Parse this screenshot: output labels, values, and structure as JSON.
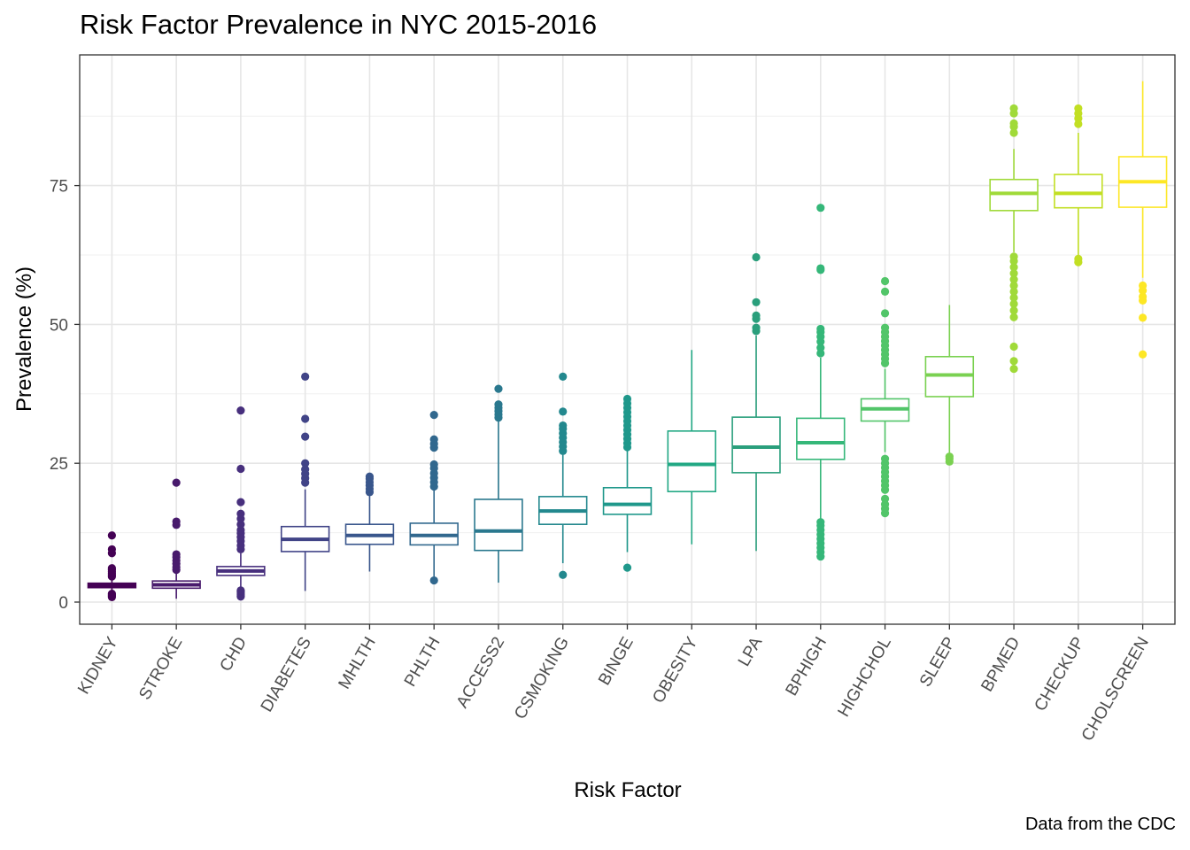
{
  "chart_data": {
    "type": "boxplot",
    "title": "Risk Factor Prevalence in NYC 2015-2016",
    "caption": "Data from the CDC",
    "xlabel": "Risk Factor",
    "ylabel": "Prevalence (%)",
    "ylim": [
      -4,
      98
    ],
    "yticks": [
      0,
      25,
      50,
      75
    ],
    "grid": true,
    "legend": "none",
    "categories": [
      "KIDNEY",
      "STROKE",
      "CHD",
      "DIABETES",
      "MHLTH",
      "PHLTH",
      "ACCESS2",
      "CSMOKING",
      "BINGE",
      "OBESITY",
      "LPA",
      "BPHIGH",
      "HIGHCHOL",
      "SLEEP",
      "BPMED",
      "CHECKUP",
      "CHOLSCREEN"
    ],
    "series": [
      {
        "category": "KIDNEY",
        "color": "#440154",
        "whisker_low": 2.0,
        "q1": 2.6,
        "median": 3.0,
        "q3": 3.4,
        "whisker_high": 4.1,
        "outliers": [
          0.9,
          1.1,
          1.3,
          1.5,
          4.6,
          4.9,
          5.2,
          5.5,
          5.8,
          6.1,
          8.8,
          9.5,
          12.0
        ]
      },
      {
        "category": "STROKE",
        "color": "#481A6C",
        "whisker_low": 0.6,
        "q1": 2.5,
        "median": 3.1,
        "q3": 3.8,
        "whisker_high": 5.4,
        "outliers": [
          5.8,
          6.3,
          6.9,
          7.5,
          8.1,
          8.6,
          13.9,
          14.5,
          21.5
        ]
      },
      {
        "category": "CHD",
        "color": "#472F7D",
        "whisker_low": 2.4,
        "q1": 4.8,
        "median": 5.6,
        "q3": 6.4,
        "whisker_high": 8.8,
        "outliers": [
          1.0,
          1.3,
          1.6,
          1.9,
          2.1,
          9.5,
          10.2,
          11.0,
          11.7,
          12.4,
          13.0,
          14.0,
          15.0,
          15.9,
          18.0,
          24.0,
          34.5
        ]
      },
      {
        "category": "DIABETES",
        "color": "#414487",
        "whisker_low": 2.0,
        "q1": 9.1,
        "median": 11.3,
        "q3": 13.6,
        "whisker_high": 20.3,
        "outliers": [
          21.5,
          22.3,
          23.1,
          23.9,
          25.0,
          29.8,
          33.0,
          40.6
        ]
      },
      {
        "category": "MHLTH",
        "color": "#39568C",
        "whisker_low": 5.5,
        "q1": 10.4,
        "median": 12.0,
        "q3": 14.0,
        "whisker_high": 19.3,
        "outliers": [
          19.8,
          20.4,
          21.0,
          21.6,
          22.2,
          22.6
        ]
      },
      {
        "category": "PHLTH",
        "color": "#31688E",
        "whisker_low": 4.1,
        "q1": 10.3,
        "median": 12.0,
        "q3": 14.2,
        "whisker_high": 20.1,
        "outliers": [
          3.9,
          20.8,
          21.6,
          22.4,
          23.2,
          24.1,
          24.8,
          27.8,
          28.5,
          29.3,
          33.7
        ]
      },
      {
        "category": "ACCESS2",
        "color": "#2A788E",
        "whisker_low": 3.5,
        "q1": 9.3,
        "median": 12.8,
        "q3": 18.5,
        "whisker_high": 32.6,
        "outliers": [
          33.2,
          33.8,
          34.4,
          35.0,
          35.6,
          38.4
        ]
      },
      {
        "category": "CSMOKING",
        "color": "#23888E",
        "whisker_low": 7.0,
        "q1": 14.0,
        "median": 16.4,
        "q3": 19.0,
        "whisker_high": 26.5,
        "outliers": [
          4.9,
          27.2,
          28.0,
          28.8,
          29.6,
          30.4,
          31.2,
          31.8,
          34.3,
          40.6
        ]
      },
      {
        "category": "BINGE",
        "color": "#1F988B",
        "whisker_low": 9.0,
        "q1": 15.8,
        "median": 17.6,
        "q3": 20.6,
        "whisker_high": 27.3,
        "outliers": [
          6.2,
          27.9,
          28.6,
          29.4,
          30.2,
          31.0,
          31.8,
          32.6,
          33.4,
          34.2,
          35.0,
          35.8,
          36.6
        ]
      },
      {
        "category": "OBESITY",
        "color": "#22A884",
        "whisker_low": 10.4,
        "q1": 19.9,
        "median": 24.8,
        "q3": 30.8,
        "whisker_high": 45.4,
        "outliers": []
      },
      {
        "category": "LPA",
        "color": "#2A9F7C",
        "whisker_low": 9.2,
        "q1": 23.3,
        "median": 27.9,
        "q3": 33.3,
        "whisker_high": 48.0,
        "outliers": [
          48.8,
          49.4,
          51.0,
          51.6,
          54.0,
          62.1
        ]
      },
      {
        "category": "BPHIGH",
        "color": "#35B779",
        "whisker_low": 15.0,
        "q1": 25.7,
        "median": 28.7,
        "q3": 33.1,
        "whisker_high": 44.0,
        "outliers": [
          8.2,
          9.0,
          9.8,
          10.6,
          11.4,
          12.2,
          13.0,
          13.8,
          14.4,
          44.8,
          45.8,
          46.9,
          47.8,
          48.6,
          49.2,
          59.8,
          60.1,
          71.0
        ]
      },
      {
        "category": "HIGHCHOL",
        "color": "#52C569",
        "whisker_low": 27.0,
        "q1": 32.6,
        "median": 34.8,
        "q3": 36.6,
        "whisker_high": 42.0,
        "outliers": [
          16.0,
          16.8,
          17.6,
          18.6,
          20.2,
          21.0,
          21.8,
          22.6,
          23.4,
          24.2,
          25.0,
          25.8,
          43.0,
          43.8,
          44.6,
          45.4,
          46.2,
          47.0,
          47.8,
          48.6,
          49.4,
          52.0,
          55.9,
          57.8
        ]
      },
      {
        "category": "SLEEP",
        "color": "#7AD151",
        "whisker_low": 26.6,
        "q1": 37.0,
        "median": 40.9,
        "q3": 44.2,
        "whisker_high": 53.5,
        "outliers": [
          25.3,
          25.8,
          26.2
        ]
      },
      {
        "category": "BPMED",
        "color": "#A0DA39",
        "whisker_low": 63.0,
        "q1": 70.5,
        "median": 73.6,
        "q3": 76.1,
        "whisker_high": 81.6,
        "outliers": [
          42.0,
          43.4,
          46.0,
          51.3,
          52.5,
          53.7,
          54.8,
          55.9,
          57.0,
          58.1,
          59.2,
          60.3,
          61.4,
          62.2,
          84.5,
          85.6,
          86.2,
          88.0,
          88.9
        ]
      },
      {
        "category": "CHECKUP",
        "color": "#C2DF23",
        "whisker_low": 62.5,
        "q1": 71.0,
        "median": 73.6,
        "q3": 77.0,
        "whisker_high": 84.5,
        "outliers": [
          61.2,
          61.8,
          86.1,
          87.1,
          88.0,
          88.9
        ]
      },
      {
        "category": "CHOLSCREEN",
        "color": "#FDE725",
        "whisker_low": 58.4,
        "q1": 71.1,
        "median": 75.7,
        "q3": 80.2,
        "whisker_high": 93.8,
        "outliers": [
          44.6,
          51.2,
          54.3,
          55.0,
          56.1,
          57.0
        ]
      }
    ]
  }
}
